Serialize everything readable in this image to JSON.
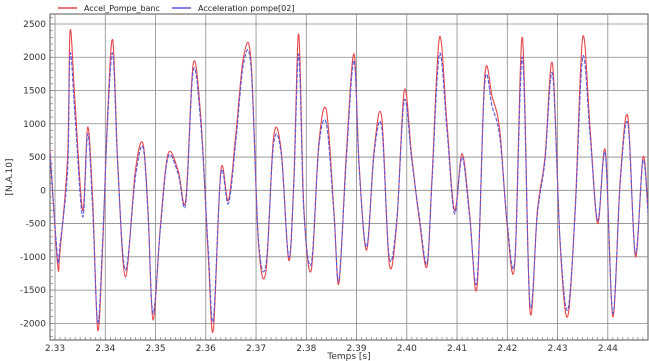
{
  "chart_data": {
    "type": "line",
    "title": "",
    "xlabel": "Temps [s]",
    "ylabel": "[N.A.10]",
    "xlim": [
      2.329,
      2.448
    ],
    "ylim": [
      -2250,
      2650
    ],
    "grid": true,
    "legend_placement": "top-left",
    "x_ticks": [
      2.33,
      2.34,
      2.35,
      2.36,
      2.37,
      2.38,
      2.39,
      2.4,
      2.41,
      2.42,
      2.43,
      2.44
    ],
    "x_tick_labels": [
      "2.33",
      "2.34",
      "2.35",
      "2.36",
      "2.37",
      "2.38",
      "2.39",
      "2.40",
      "2.41",
      "2.42",
      "2.43",
      "2.44"
    ],
    "y_ticks": [
      2500,
      2000,
      1500,
      1000,
      500,
      0,
      -500,
      -1000,
      -1500,
      -2000
    ],
    "y_tick_labels": [
      "2500",
      "2000",
      "1500",
      "1000",
      "500",
      "0",
      "-500",
      "-1000",
      "-1500",
      "-2000"
    ],
    "x": [
      2.329,
      2.3305,
      2.331,
      2.3325,
      2.333,
      2.334,
      2.3355,
      2.3365,
      2.3375,
      2.3385,
      2.3395,
      2.3405,
      2.3415,
      2.3425,
      2.344,
      2.346,
      2.3475,
      2.3485,
      2.3495,
      2.351,
      2.3525,
      2.3545,
      2.356,
      2.3575,
      2.359,
      2.3605,
      2.3615,
      2.363,
      2.3645,
      2.366,
      2.3675,
      2.369,
      2.3705,
      2.372,
      2.3735,
      2.375,
      2.3765,
      2.3775,
      2.3785,
      2.3795,
      2.381,
      2.3825,
      2.384,
      2.3855,
      2.3865,
      2.388,
      2.3895,
      2.3905,
      2.392,
      2.3935,
      2.395,
      2.3965,
      2.398,
      2.3995,
      2.401,
      2.4025,
      2.404,
      2.405,
      2.4065,
      2.408,
      2.4095,
      2.411,
      2.4125,
      2.414,
      2.4155,
      2.417,
      2.4185,
      2.42,
      2.4215,
      2.423,
      2.4245,
      2.426,
      2.4275,
      2.429,
      2.4305,
      2.432,
      2.4335,
      2.435,
      2.4365,
      2.438,
      2.4395,
      2.441,
      2.4425,
      2.444,
      2.4455,
      2.447,
      2.448
    ],
    "series": [
      {
        "name": "Accel_Pompe_banc",
        "color": "#e8454a",
        "values": [
          600,
          -1100,
          -900,
          500,
          2400,
          1300,
          -300,
          950,
          -150,
          -2100,
          -800,
          1200,
          2250,
          400,
          -1300,
          300,
          700,
          -300,
          -1950,
          -500,
          550,
          300,
          -150,
          1900,
          1100,
          -1000,
          -2100,
          300,
          -150,
          850,
          2000,
          1950,
          -800,
          -1200,
          800,
          600,
          -1050,
          100,
          2350,
          -250,
          -1200,
          700,
          1200,
          -300,
          -1400,
          600,
          2050,
          400,
          -900,
          600,
          1100,
          -1100,
          -500,
          1500,
          500,
          -450,
          -1150,
          150,
          2300,
          1000,
          -300,
          550,
          -350,
          -1450,
          1700,
          1400,
          900,
          -550,
          -1100,
          2300,
          -1800,
          -300,
          500,
          1900,
          -800,
          -1900,
          -300,
          2300,
          900,
          -500,
          600,
          -1900,
          200,
          1100,
          -1000,
          500,
          -300
        ]
      },
      {
        "name": "Acceleration pompe[02]",
        "color": "#5656e0",
        "values": [
          550,
          -1000,
          -800,
          300,
          2050,
          1100,
          -400,
          850,
          -300,
          -2000,
          -700,
          1100,
          2050,
          350,
          -1200,
          200,
          650,
          -350,
          -1850,
          -550,
          500,
          250,
          -200,
          1800,
          1000,
          -900,
          -1950,
          250,
          -200,
          750,
          1900,
          1850,
          -750,
          -1100,
          700,
          550,
          -1000,
          50,
          2050,
          -300,
          -1100,
          650,
          1000,
          -350,
          -1350,
          500,
          1950,
          350,
          -850,
          550,
          950,
          -1000,
          -450,
          1350,
          450,
          -400,
          -1100,
          100,
          2050,
          900,
          -350,
          500,
          -400,
          -1350,
          1600,
          1250,
          800,
          -500,
          -1050,
          2000,
          -1700,
          -350,
          450,
          1750,
          -750,
          -1800,
          -350,
          2000,
          800,
          -450,
          550,
          -1850,
          150,
          1000,
          -950,
          450,
          -350
        ]
      }
    ]
  },
  "legend": {
    "items": [
      {
        "label": "Accel_Pompe_banc",
        "color": "#e8454a"
      },
      {
        "label": "Acceleration pompe[02]",
        "color": "#5656e0"
      }
    ]
  }
}
